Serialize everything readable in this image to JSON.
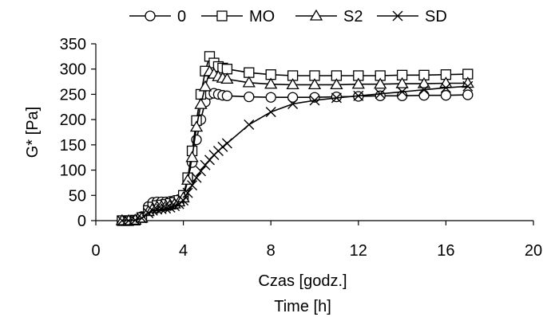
{
  "chart_data": {
    "type": "line",
    "title": "",
    "xlabel": "Czas [godz.]",
    "xlabel2": "Time [h]",
    "ylabel": "G* [Pa]",
    "xlim": [
      0,
      20
    ],
    "ylim": [
      0,
      350
    ],
    "xticks": [
      0,
      4,
      8,
      12,
      16,
      20
    ],
    "yticks": [
      0,
      50,
      100,
      150,
      200,
      250,
      300,
      350
    ],
    "grid": false,
    "legend_position": "top-center",
    "series": [
      {
        "name": "0",
        "marker": "circle",
        "x": [
          1.2,
          1.5,
          1.8,
          2.1,
          2.4,
          2.6,
          2.8,
          3.0,
          3.2,
          3.4,
          3.6,
          3.8,
          4.0,
          4.2,
          4.4,
          4.6,
          4.8,
          5.0,
          5.2,
          5.4,
          5.6,
          5.8,
          6.0,
          7.0,
          8.0,
          9.0,
          10.0,
          11.0,
          12.0,
          13.0,
          14.0,
          15.0,
          16.0,
          17.0
        ],
        "y": [
          0,
          0,
          1,
          8,
          28,
          36,
          37,
          37,
          37,
          38,
          40,
          42,
          48,
          85,
          115,
          160,
          200,
          235,
          250,
          252,
          250,
          248,
          247,
          245,
          244,
          244,
          244,
          245,
          246,
          247,
          247,
          248,
          248,
          249
        ]
      },
      {
        "name": "MO",
        "marker": "square",
        "x": [
          1.2,
          1.5,
          1.8,
          2.1,
          2.4,
          2.6,
          2.8,
          3.0,
          3.2,
          3.4,
          3.6,
          3.8,
          4.0,
          4.2,
          4.4,
          4.6,
          4.8,
          5.0,
          5.2,
          5.4,
          5.6,
          5.8,
          6.0,
          7.0,
          8.0,
          9.0,
          10.0,
          11.0,
          12.0,
          13.0,
          14.0,
          15.0,
          16.0,
          17.0
        ],
        "y": [
          0,
          0,
          1,
          6,
          20,
          27,
          30,
          31,
          32,
          34,
          36,
          40,
          50,
          85,
          138,
          198,
          250,
          296,
          325,
          312,
          305,
          302,
          300,
          293,
          289,
          287,
          287,
          287,
          287,
          287,
          288,
          288,
          289,
          290
        ]
      },
      {
        "name": "S2",
        "marker": "triangle",
        "x": [
          1.2,
          1.5,
          1.8,
          2.1,
          2.4,
          2.6,
          2.8,
          3.0,
          3.2,
          3.4,
          3.6,
          3.8,
          4.0,
          4.2,
          4.4,
          4.6,
          4.8,
          5.0,
          5.2,
          5.4,
          5.6,
          5.8,
          6.0,
          7.0,
          8.0,
          9.0,
          10.0,
          11.0,
          12.0,
          13.0,
          14.0,
          15.0,
          16.0,
          17.0
        ],
        "y": [
          0,
          0,
          1,
          5,
          18,
          24,
          27,
          28,
          29,
          31,
          33,
          37,
          45,
          80,
          125,
          185,
          230,
          265,
          295,
          290,
          285,
          282,
          280,
          273,
          270,
          269,
          269,
          269,
          270,
          270,
          271,
          271,
          272,
          272
        ]
      },
      {
        "name": "SD",
        "marker": "cross",
        "x": [
          1.2,
          1.5,
          1.8,
          2.1,
          2.4,
          2.6,
          2.8,
          3.0,
          3.2,
          3.4,
          3.6,
          3.8,
          4.0,
          4.2,
          4.4,
          4.6,
          4.8,
          5.0,
          5.2,
          5.4,
          5.6,
          5.8,
          6.0,
          7.0,
          8.0,
          9.0,
          10.0,
          11.0,
          12.0,
          13.0,
          14.0,
          15.0,
          16.0,
          17.0
        ],
        "y": [
          0,
          0,
          1,
          5,
          15,
          20,
          22,
          23,
          24,
          26,
          29,
          33,
          40,
          55,
          70,
          85,
          98,
          110,
          120,
          130,
          138,
          146,
          153,
          190,
          215,
          231,
          238,
          243,
          247,
          251,
          255,
          259,
          263,
          266
        ]
      }
    ]
  }
}
